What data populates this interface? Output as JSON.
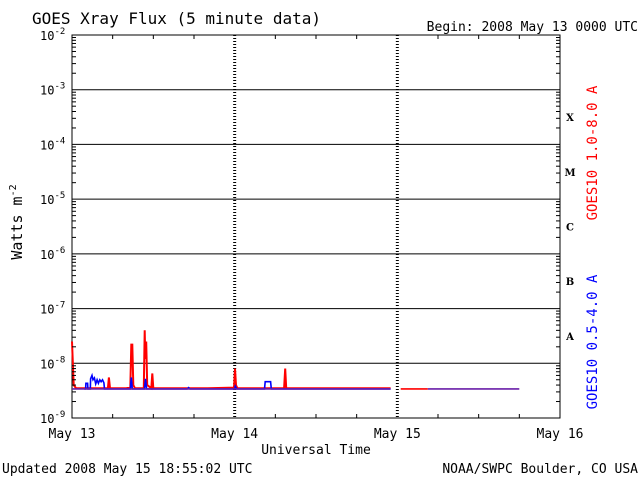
{
  "chart_data": {
    "type": "line",
    "title": "GOES Xray Flux (5 minute data)",
    "begin_label": "Begin:  2008 May 13 0000 UTC",
    "xlabel": "Universal Time",
    "ylabel_base": "Watts m",
    "ylabel_exp": "-2",
    "y_scale": "log",
    "ylim": [
      1e-09,
      0.01
    ],
    "xlim_hours": [
      0,
      72
    ],
    "grid": true,
    "legend": "right-vertical",
    "x_ticks": [
      {
        "hour": 0,
        "label": "May 13"
      },
      {
        "hour": 24,
        "label": "May 14"
      },
      {
        "hour": 48,
        "label": "May 15"
      },
      {
        "hour": 72,
        "label": "May 16"
      }
    ],
    "y_ticks": [
      {
        "base": "10",
        "exp": "-2",
        "value": 0.01
      },
      {
        "base": "10",
        "exp": "-3",
        "value": 0.001
      },
      {
        "base": "10",
        "exp": "-4",
        "value": 0.0001
      },
      {
        "base": "10",
        "exp": "-5",
        "value": 1e-05
      },
      {
        "base": "10",
        "exp": "-6",
        "value": 1e-06
      },
      {
        "base": "10",
        "exp": "-7",
        "value": 1e-07
      },
      {
        "base": "10",
        "exp": "-8",
        "value": 1e-08
      },
      {
        "base": "10",
        "exp": "-9",
        "value": 1e-09
      }
    ],
    "flare_classes": [
      {
        "label": "X",
        "low": 0.0001,
        "high": 0.001
      },
      {
        "label": "M",
        "low": 1e-05,
        "high": 0.0001
      },
      {
        "label": "C",
        "low": 1e-06,
        "high": 1e-05
      },
      {
        "label": "B",
        "low": 1e-07,
        "high": 1e-06
      },
      {
        "label": "A",
        "low": 1e-08,
        "high": 1e-07
      }
    ],
    "series": [
      {
        "name": "GOES10 1.0-8.0 A",
        "color": "#ff0000",
        "points": [
          [
            0.0,
            2.5e-08
          ],
          [
            0.25,
            4e-09
          ],
          [
            0.6,
            3.5e-09
          ],
          [
            1.0,
            3.5e-09
          ],
          [
            3.5,
            3.5e-09
          ],
          [
            5.3,
            3.5e-09
          ],
          [
            5.45,
            5.5e-09
          ],
          [
            5.6,
            3.5e-09
          ],
          [
            8.0,
            3.5e-09
          ],
          [
            8.6,
            3.6e-09
          ],
          [
            8.75,
            2.2e-08
          ],
          [
            8.9,
            2.2e-08
          ],
          [
            9.05,
            4e-09
          ],
          [
            9.3,
            3.5e-09
          ],
          [
            10.6,
            3.5e-09
          ],
          [
            10.72,
            4e-08
          ],
          [
            10.82,
            1.2e-08
          ],
          [
            10.95,
            2.5e-08
          ],
          [
            11.1,
            4e-09
          ],
          [
            11.7,
            3.5e-09
          ],
          [
            11.85,
            6.5e-09
          ],
          [
            12.0,
            3.5e-09
          ],
          [
            15.0,
            3.5e-09
          ],
          [
            20.0,
            3.5e-09
          ],
          [
            23.9,
            3.6e-09
          ],
          [
            24.05,
            8e-09
          ],
          [
            24.2,
            4e-09
          ],
          [
            24.4,
            3.5e-09
          ],
          [
            28.0,
            3.5e-09
          ],
          [
            31.3,
            3.5e-09
          ],
          [
            31.45,
            8e-09
          ],
          [
            31.6,
            3.5e-09
          ],
          [
            40.0,
            3.5e-09
          ],
          [
            47.0,
            3.5e-09
          ]
        ]
      },
      {
        "name": "GOES10 0.5-4.0 A",
        "color": "#0000ff",
        "points": [
          [
            1.8,
            3.4e-09
          ],
          [
            2.0,
            3.4e-09
          ],
          [
            2.05,
            4.3e-09
          ],
          [
            2.3,
            4.3e-09
          ],
          [
            2.35,
            3.4e-09
          ],
          [
            2.7,
            3.4e-09
          ],
          [
            2.75,
            5.2e-09
          ],
          [
            2.95,
            6e-09
          ],
          [
            3.1,
            5e-09
          ],
          [
            3.3,
            5.4e-09
          ],
          [
            3.5,
            4.2e-09
          ],
          [
            3.7,
            5e-09
          ],
          [
            3.9,
            4.3e-09
          ],
          [
            4.1,
            5e-09
          ],
          [
            4.3,
            4.6e-09
          ],
          [
            4.5,
            5e-09
          ],
          [
            4.7,
            4.4e-09
          ],
          [
            4.8,
            3.4e-09
          ],
          [
            8.6,
            3.4e-09
          ],
          [
            8.75,
            5.5e-09
          ],
          [
            8.9,
            3.4e-09
          ],
          [
            10.7,
            3.4e-09
          ],
          [
            10.85,
            5.2e-09
          ],
          [
            11.0,
            3.4e-09
          ],
          [
            17.0,
            3.4e-09
          ],
          [
            17.2,
            3.6e-09
          ],
          [
            17.4,
            3.4e-09
          ],
          [
            24.0,
            3.4e-09
          ],
          [
            24.1,
            3.8e-09
          ],
          [
            24.3,
            3.4e-09
          ],
          [
            28.4,
            3.4e-09
          ],
          [
            28.5,
            4.6e-09
          ],
          [
            29.3,
            4.6e-09
          ],
          [
            29.4,
            3.4e-09
          ],
          [
            35.0,
            3.4e-09
          ],
          [
            40.0,
            3.4e-09
          ],
          [
            47.0,
            3.4e-09
          ]
        ]
      },
      {
        "name": "",
        "color": "#6a1fa8",
        "points": [
          [
            0.0,
            3.4e-09
          ],
          [
            10.0,
            3.4e-09
          ],
          [
            20.0,
            3.4e-09
          ],
          [
            30.0,
            3.4e-09
          ],
          [
            47.0,
            3.4e-09
          ]
        ]
      },
      {
        "name": "",
        "color": "#ff0000",
        "points": [
          [
            48.5,
            3.4e-09
          ],
          [
            52.5,
            3.4e-09
          ]
        ]
      },
      {
        "name": "",
        "color": "#6a1fa8",
        "points": [
          [
            52.5,
            3.4e-09
          ],
          [
            60.0,
            3.4e-09
          ],
          [
            66.0,
            3.4e-09
          ]
        ]
      }
    ]
  },
  "footer": {
    "updated": "Updated 2008 May 15 18:55:02 UTC",
    "credit": "NOAA/SWPC Boulder, CO USA"
  }
}
